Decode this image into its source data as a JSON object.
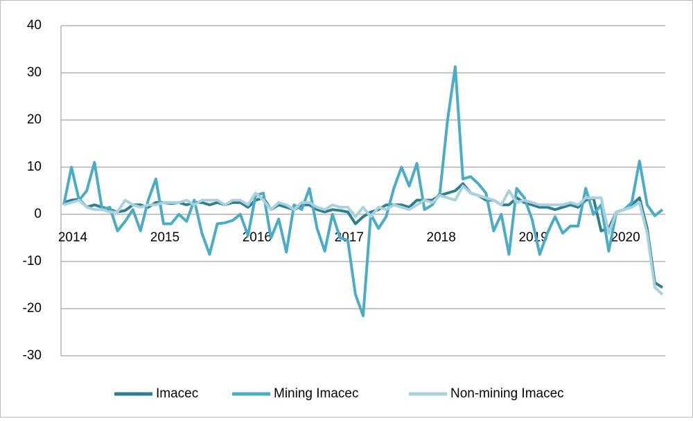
{
  "chart_data": {
    "type": "line",
    "categories": [
      "2014",
      null,
      null,
      null,
      null,
      null,
      null,
      null,
      null,
      null,
      null,
      null,
      "2015",
      null,
      null,
      null,
      null,
      null,
      null,
      null,
      null,
      null,
      null,
      null,
      "2016",
      null,
      null,
      null,
      null,
      null,
      null,
      null,
      null,
      null,
      null,
      null,
      "2017",
      null,
      null,
      null,
      null,
      null,
      null,
      null,
      null,
      null,
      null,
      null,
      "2018",
      null,
      null,
      null,
      null,
      null,
      null,
      null,
      null,
      null,
      null,
      null,
      "2019",
      null,
      null,
      null,
      null,
      null,
      null,
      null,
      null,
      null,
      null,
      null,
      "2020",
      null,
      null,
      null,
      null,
      null,
      null
    ],
    "series": [
      {
        "name": "Imacec",
        "color": "#2f7f91",
        "values": [
          2.5,
          3,
          3.2,
          1.5,
          2,
          1.5,
          1,
          0.5,
          0.8,
          2,
          2,
          1.5,
          2.5,
          2.5,
          2.3,
          2.5,
          2,
          2.5,
          2.5,
          2,
          2.5,
          2,
          2.5,
          2.5,
          1.5,
          3,
          3.5,
          1,
          2,
          1.5,
          1,
          2,
          2,
          1,
          0.5,
          1,
          0.8,
          0.5,
          -2,
          -0.5,
          0.5,
          1,
          2,
          2,
          2,
          1.5,
          3,
          3,
          3,
          4,
          4.5,
          5,
          6.5,
          4.5,
          4,
          3,
          3,
          2,
          2,
          3.5,
          2.5,
          2,
          1.5,
          1.5,
          1,
          1.5,
          2,
          1.5,
          3,
          3.5,
          -3.5,
          -3,
          0.5,
          1,
          2,
          3.5,
          -3,
          -14.5,
          -15.5
        ]
      },
      {
        "name": "Mining Imacec",
        "color": "#4bacc6",
        "values": [
          2,
          10,
          3,
          5,
          11,
          1,
          1.5,
          -3.5,
          -1.5,
          1,
          -3.5,
          3,
          7.5,
          -2,
          -2,
          0,
          -1.5,
          3,
          -4,
          -8.5,
          -2,
          -1.8,
          -1.3,
          0,
          -4.5,
          4,
          4.5,
          -5,
          -1,
          -8,
          2,
          1,
          5.5,
          -3,
          -7.8,
          0,
          -5,
          -5.5,
          -17,
          -21.5,
          0,
          -3,
          -0.5,
          5.5,
          10,
          6,
          10.8,
          1,
          2,
          4.5,
          20,
          31.3,
          7.5,
          8,
          6.5,
          4.5,
          -3.5,
          0,
          -8.5,
          5.5,
          3.5,
          -1,
          -8.5,
          -4,
          -0.5,
          -4,
          -2.5,
          -2.5,
          5.5,
          0,
          2,
          -7.8,
          0.5,
          1,
          2.5,
          11.3,
          2,
          -0.3,
          1
        ]
      },
      {
        "name": "Non-mining Imacec",
        "color": "#a9d1de",
        "values": [
          2,
          2.5,
          3,
          1.5,
          1,
          1,
          0.5,
          0.5,
          3,
          2,
          1.5,
          2,
          2,
          2.5,
          2.5,
          2.5,
          3,
          2,
          3,
          3,
          3,
          2,
          3,
          3,
          2,
          4.5,
          3,
          1,
          2.5,
          2,
          1,
          2.5,
          2.5,
          1.5,
          1,
          2,
          1.5,
          1.5,
          -0.5,
          1.5,
          -0.5,
          1.5,
          1,
          2,
          1.5,
          1,
          2,
          3,
          2.5,
          4,
          3.5,
          3,
          6,
          4.5,
          4,
          3.5,
          3,
          2,
          5,
          2.5,
          3,
          2.5,
          2,
          2,
          2,
          2,
          2.5,
          2,
          3.5,
          3.5,
          3.5,
          -4,
          0.5,
          1,
          1.5,
          2.5,
          -4,
          -15.5,
          -17
        ]
      }
    ],
    "ylim": [
      -30,
      40
    ],
    "yticks": [
      -30,
      -20,
      -10,
      0,
      10,
      20,
      30,
      40
    ],
    "grid": true,
    "legend": "bottom"
  }
}
